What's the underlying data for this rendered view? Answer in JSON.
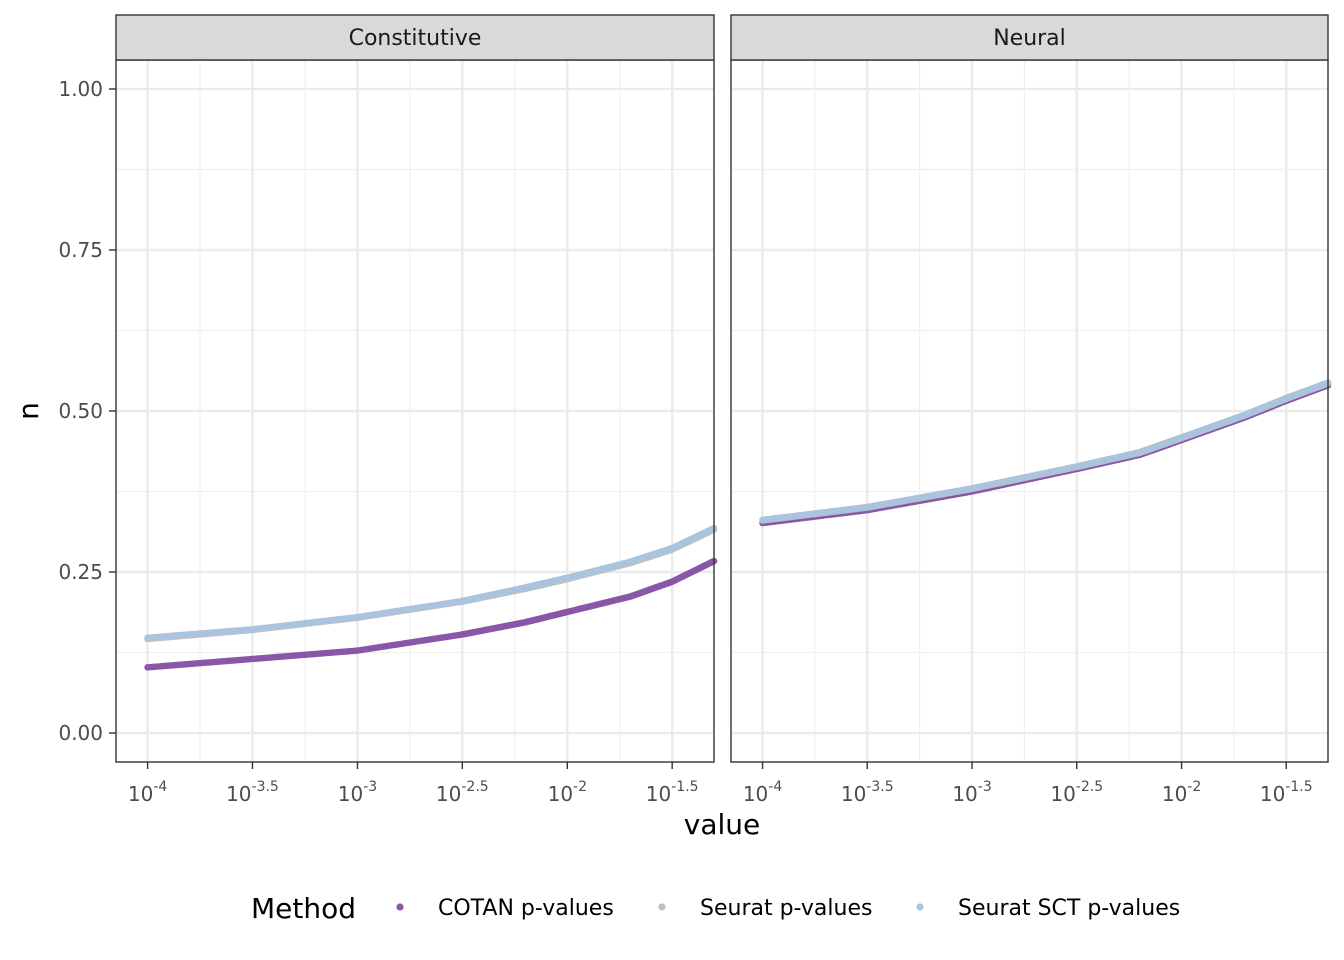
{
  "chart_data": {
    "type": "scatter",
    "xlabel": "value",
    "ylabel": "n",
    "x_scale": "log10",
    "xlim": [
      7.07e-05,
      0.05
    ],
    "ylim": [
      -0.045,
      1.045
    ],
    "x_ticks": [
      {
        "value": 0.0001,
        "base": "10",
        "exp": "-4"
      },
      {
        "value": 0.000316,
        "base": "10",
        "exp": "-3.5"
      },
      {
        "value": 0.001,
        "base": "10",
        "exp": "-3"
      },
      {
        "value": 0.00316,
        "base": "10",
        "exp": "-2.5"
      },
      {
        "value": 0.01,
        "base": "10",
        "exp": "-2"
      },
      {
        "value": 0.0316,
        "base": "10",
        "exp": "-1.5"
      }
    ],
    "y_ticks": [
      {
        "value": 0.0,
        "label": "0.00"
      },
      {
        "value": 0.25,
        "label": "0.25"
      },
      {
        "value": 0.5,
        "label": "0.50"
      },
      {
        "value": 0.75,
        "label": "0.75"
      },
      {
        "value": 1.0,
        "label": "1.00"
      }
    ],
    "grid": true,
    "legend": {
      "title": "Method",
      "position": "bottom",
      "entries": [
        {
          "name": "COTAN p-values",
          "color": "#8a56a8"
        },
        {
          "name": "Seurat p-values",
          "color": "#c0c0c0"
        },
        {
          "name": "Seurat SCT p-values",
          "color": "#a9c4dc"
        }
      ]
    },
    "panels": [
      {
        "name": "Constitutive",
        "series": [
          {
            "name": "COTAN p-values",
            "color": "#8a56a8",
            "points": [
              [
                0.0001,
                0.102
              ],
              [
                0.000316,
                0.115
              ],
              [
                0.001,
                0.128
              ],
              [
                0.00316,
                0.153
              ],
              [
                0.00631,
                0.172
              ],
              [
                0.01,
                0.188
              ],
              [
                0.02,
                0.212
              ],
              [
                0.0316,
                0.235
              ],
              [
                0.05,
                0.267
              ]
            ]
          },
          {
            "name": "Seurat p-values",
            "color": "#c0c0c0",
            "points": [
              [
                0.0001,
                0.146
              ],
              [
                0.000316,
                0.16
              ],
              [
                0.001,
                0.179
              ],
              [
                0.00316,
                0.204
              ],
              [
                0.00631,
                0.224
              ],
              [
                0.01,
                0.239
              ],
              [
                0.02,
                0.264
              ],
              [
                0.0316,
                0.285
              ],
              [
                0.05,
                0.316
              ]
            ]
          },
          {
            "name": "Seurat SCT p-values",
            "color": "#a9c4dc",
            "points": [
              [
                0.0001,
                0.148
              ],
              [
                0.000316,
                0.161
              ],
              [
                0.001,
                0.18
              ],
              [
                0.00316,
                0.205
              ],
              [
                0.00631,
                0.226
              ],
              [
                0.01,
                0.241
              ],
              [
                0.02,
                0.266
              ],
              [
                0.0316,
                0.287
              ],
              [
                0.05,
                0.318
              ]
            ]
          }
        ]
      },
      {
        "name": "Neural",
        "series": [
          {
            "name": "COTAN p-values",
            "color": "#8a56a8",
            "points": [
              [
                0.0001,
                0.326
              ],
              [
                0.000316,
                0.346
              ],
              [
                0.001,
                0.375
              ],
              [
                0.00316,
                0.41
              ],
              [
                0.00631,
                0.432
              ],
              [
                0.01,
                0.455
              ],
              [
                0.02,
                0.49
              ],
              [
                0.0316,
                0.516
              ],
              [
                0.05,
                0.54
              ]
            ]
          },
          {
            "name": "Seurat p-values",
            "color": "#c0c0c0",
            "points": [
              [
                0.0001,
                0.33
              ],
              [
                0.000316,
                0.35
              ],
              [
                0.001,
                0.379
              ],
              [
                0.00316,
                0.413
              ],
              [
                0.00631,
                0.435
              ],
              [
                0.01,
                0.458
              ],
              [
                0.02,
                0.493
              ],
              [
                0.0316,
                0.519
              ],
              [
                0.05,
                0.543
              ]
            ]
          },
          {
            "name": "Seurat SCT p-values",
            "color": "#a9c4dc",
            "points": [
              [
                0.0001,
                0.331
              ],
              [
                0.000316,
                0.351
              ],
              [
                0.001,
                0.38
              ],
              [
                0.00316,
                0.414
              ],
              [
                0.00631,
                0.436
              ],
              [
                0.01,
                0.459
              ],
              [
                0.02,
                0.494
              ],
              [
                0.0316,
                0.52
              ],
              [
                0.05,
                0.544
              ]
            ]
          }
        ]
      }
    ]
  }
}
